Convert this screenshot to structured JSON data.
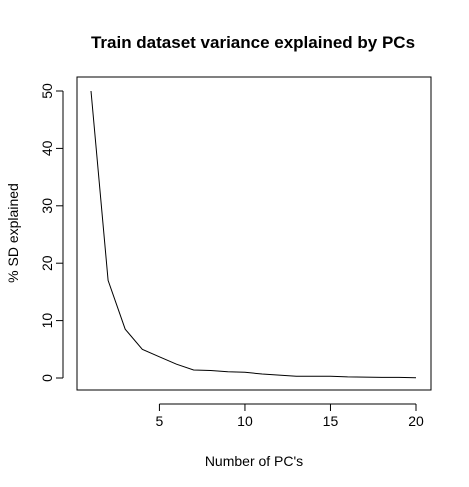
{
  "chart_data": {
    "type": "line",
    "title": "Train dataset variance explained by PCs",
    "xlabel": "Number of PC's",
    "ylabel": "% SD explained",
    "xlim": [
      1,
      20
    ],
    "ylim": [
      0,
      50
    ],
    "xticks": [
      5,
      10,
      15,
      20
    ],
    "yticks": [
      0,
      10,
      20,
      30,
      40,
      50
    ],
    "grid": false,
    "legend": "none",
    "x": [
      1,
      2,
      3,
      4,
      5,
      6,
      7,
      8,
      9,
      10,
      11,
      12,
      13,
      14,
      15,
      16,
      17,
      18,
      19,
      20
    ],
    "y": [
      50.0,
      17.0,
      8.5,
      5.0,
      3.7,
      2.4,
      1.4,
      1.3,
      1.1,
      1.0,
      0.7,
      0.5,
      0.3,
      0.3,
      0.3,
      0.2,
      0.15,
      0.1,
      0.1,
      0.05
    ],
    "line_color": "#000000"
  }
}
